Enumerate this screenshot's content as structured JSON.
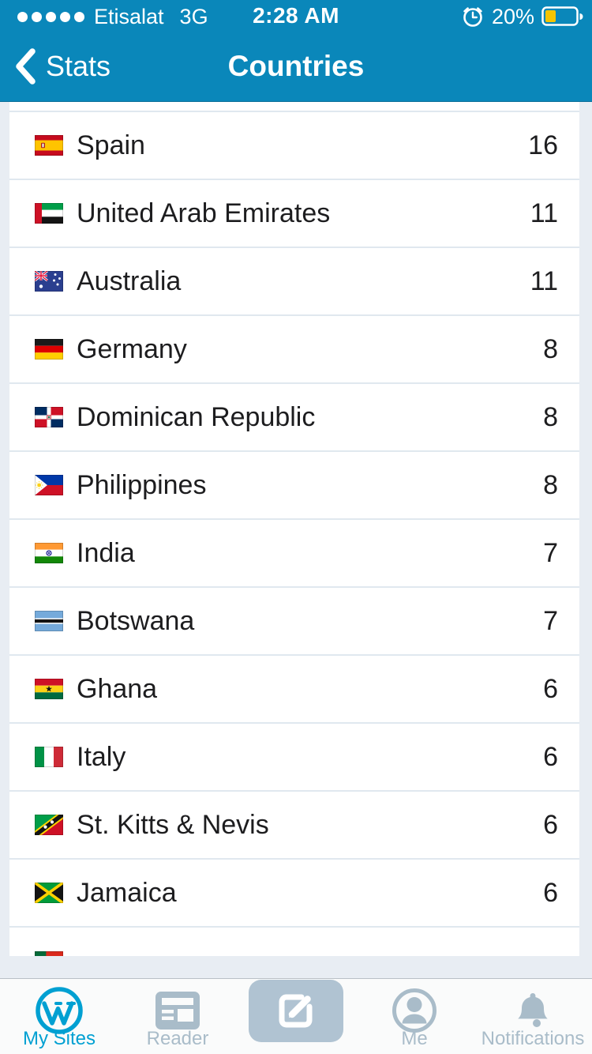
{
  "colors": {
    "header_blue": "#0a87ba",
    "list_background": "#e8edf3",
    "separator": "#e0e8ef",
    "active_tab_blue": "#00a0d2",
    "inactive_tab_gray": "#a9bcc9",
    "battery_yellow": "#f5c400",
    "row_text": "#1d1d1f"
  },
  "status_bar": {
    "signal_dots": 5,
    "carrier": "Etisalat",
    "network": "3G",
    "time": "2:28 AM",
    "battery_percent": "20%",
    "icons": [
      "signal-strength",
      "alarm-clock",
      "battery"
    ]
  },
  "nav": {
    "back_label": "Stats",
    "title": "Countries"
  },
  "countries": {
    "rows": [
      {
        "name": "Spain",
        "views": "16",
        "flag": "spain"
      },
      {
        "name": "United Arab Emirates",
        "views": "11",
        "flag": "uae"
      },
      {
        "name": "Australia",
        "views": "11",
        "flag": "australia"
      },
      {
        "name": "Germany",
        "views": "8",
        "flag": "germany"
      },
      {
        "name": "Dominican Republic",
        "views": "8",
        "flag": "dominican-republic"
      },
      {
        "name": "Philippines",
        "views": "8",
        "flag": "philippines"
      },
      {
        "name": "India",
        "views": "7",
        "flag": "india"
      },
      {
        "name": "Botswana",
        "views": "7",
        "flag": "botswana"
      },
      {
        "name": "Ghana",
        "views": "6",
        "flag": "ghana"
      },
      {
        "name": "Italy",
        "views": "6",
        "flag": "italy"
      },
      {
        "name": "St. Kitts & Nevis",
        "views": "6",
        "flag": "st-kitts-nevis"
      },
      {
        "name": "Jamaica",
        "views": "6",
        "flag": "jamaica"
      }
    ],
    "partial_row_flag": "portugal"
  },
  "tab_bar": {
    "items": [
      {
        "label": "My Sites",
        "icon": "wordpress",
        "active": true
      },
      {
        "label": "Reader",
        "icon": "reader",
        "active": false
      },
      {
        "label": "",
        "icon": "compose",
        "active": false,
        "button": true
      },
      {
        "label": "Me",
        "icon": "me",
        "active": false
      },
      {
        "label": "Notifications",
        "icon": "notifications",
        "active": false
      }
    ]
  }
}
